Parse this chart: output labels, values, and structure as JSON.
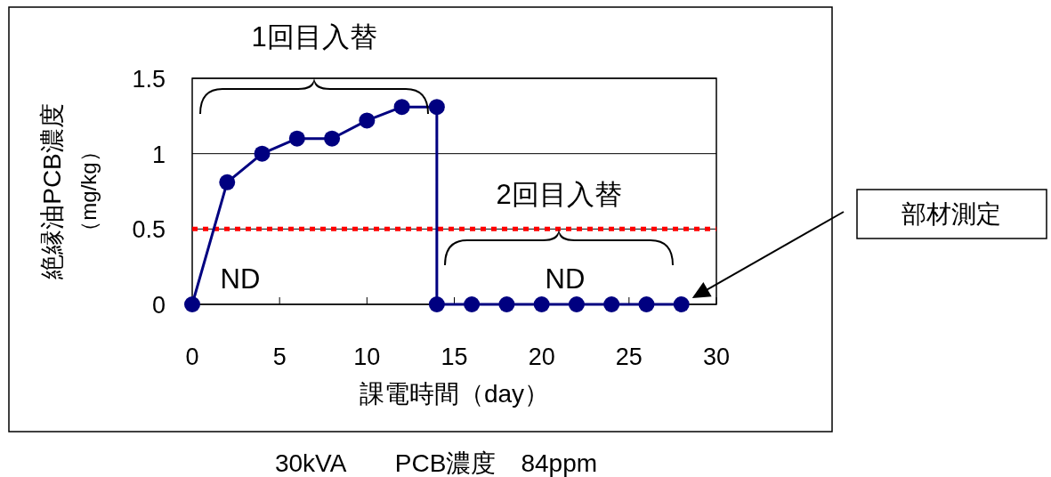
{
  "chart_data": {
    "type": "line",
    "xlabel": "課電時間（day）",
    "ylabel": "絶縁油PCB濃度（mg/kg）",
    "x": [
      0,
      2,
      4,
      6,
      8,
      10,
      12,
      14,
      14,
      16,
      18,
      20,
      22,
      24,
      26,
      28
    ],
    "series": [
      {
        "color": "#000080",
        "values": [
          0,
          0.81,
          1.0,
          1.1,
          1.1,
          1.22,
          1.31,
          1.31,
          0,
          0,
          0,
          0,
          0,
          0,
          0,
          0
        ]
      }
    ],
    "xlim": [
      0,
      30
    ],
    "xticks": [
      0,
      5,
      10,
      15,
      20,
      25,
      30
    ],
    "ylim": [
      0,
      1.5
    ],
    "yticks": [
      0,
      0.5,
      1,
      1.5
    ],
    "grid": "y",
    "marker": "circle",
    "line_style": "solid",
    "ref_lines": [
      {
        "axis": "y",
        "value": 0.5,
        "color": "#ff0000",
        "line_style": "dotted"
      }
    ],
    "annotations": [
      "1回目入替",
      "2回目入替",
      "ND",
      "ND",
      "部材測定",
      "30kVA　　PCB濃度　84ppm"
    ]
  }
}
